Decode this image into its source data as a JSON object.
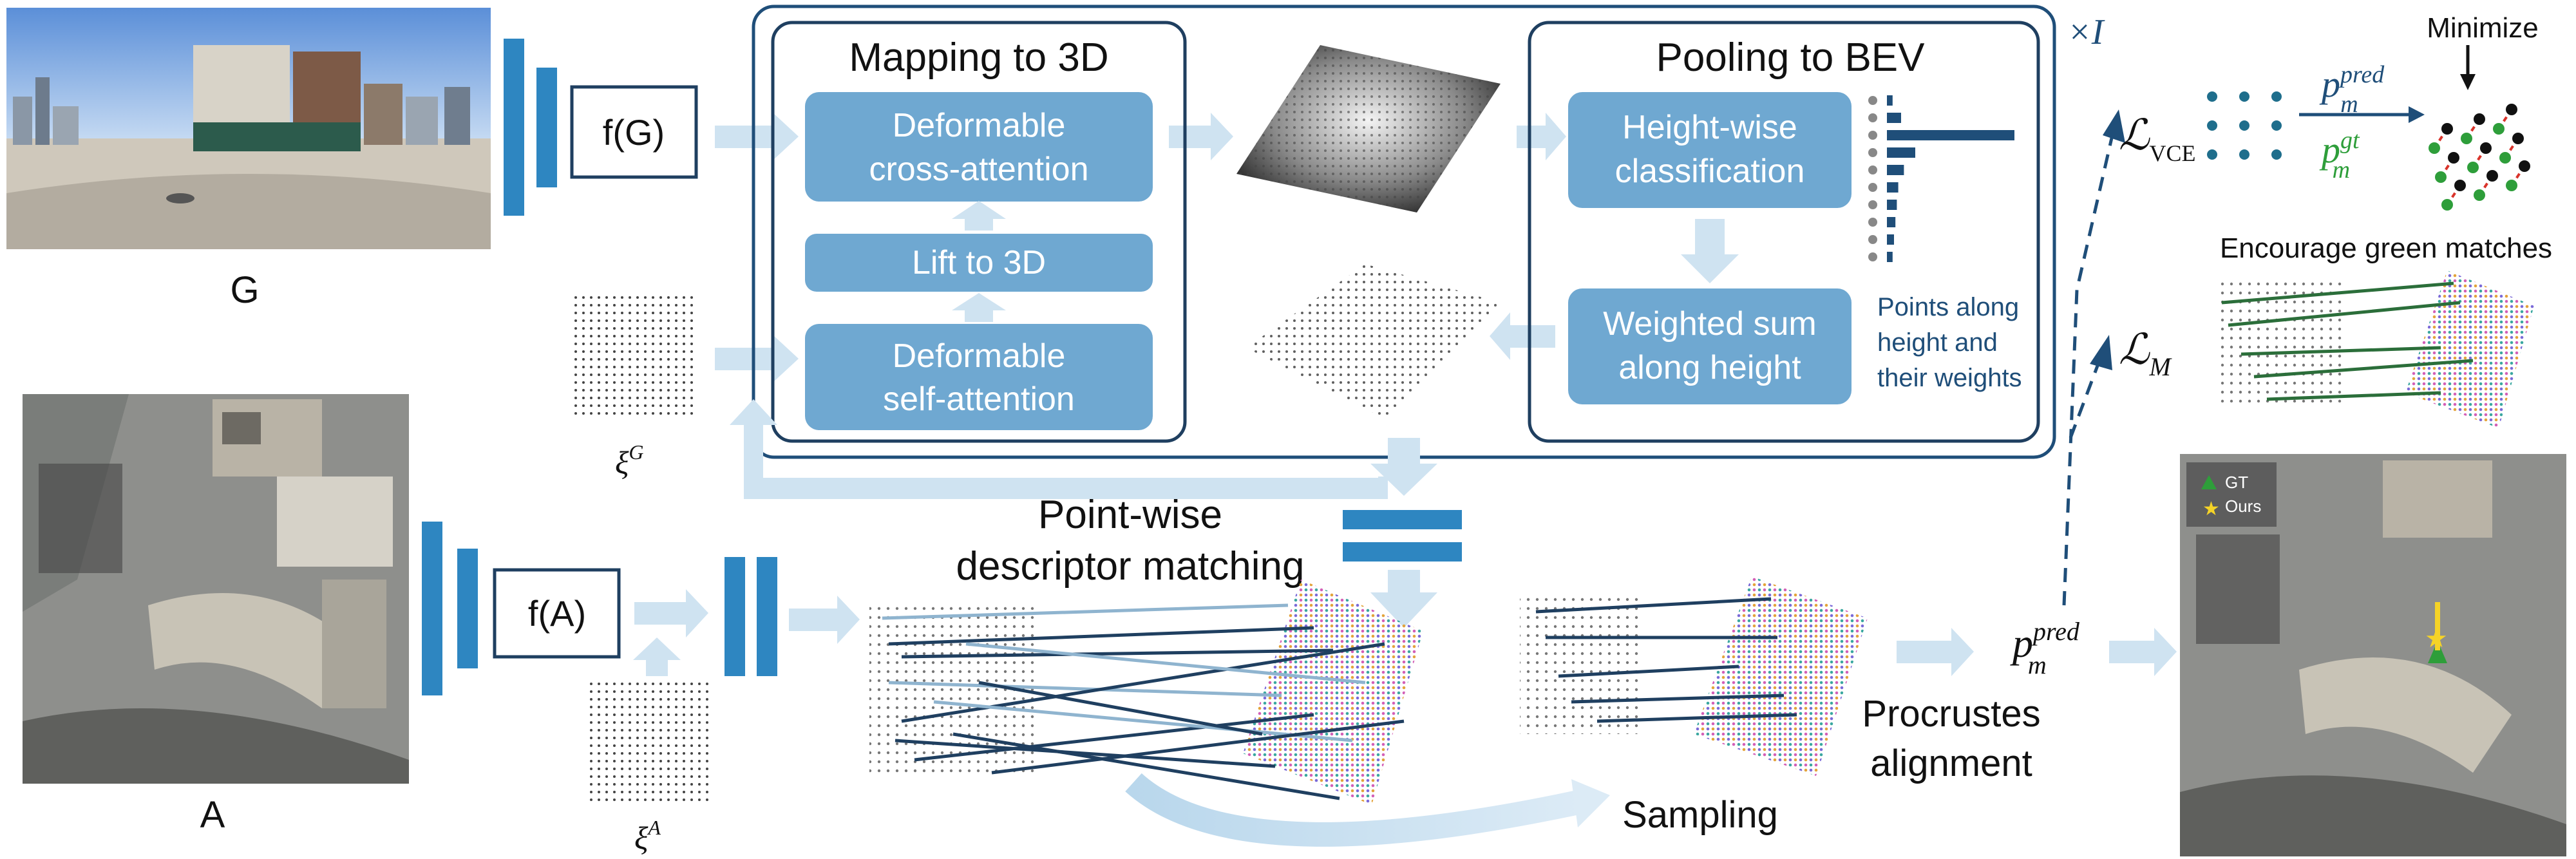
{
  "colors": {
    "navy": "#1f4e79",
    "block_fill": "#6fa8d1",
    "bar_blue": "#2e86c1",
    "light_arrow": "#cfe3f1",
    "green": "#2e9e3a",
    "red": "#d9342b",
    "dark_line": "#1f3f60"
  },
  "inputs": {
    "ground_label": "G",
    "aerial_label": "A"
  },
  "encoders": {
    "ground": "f(G)",
    "aerial": "f(A)"
  },
  "queries": {
    "ground_xi": "ξ",
    "ground_xi_sup": "G",
    "aerial_xi": "ξ",
    "aerial_xi_sup": "A"
  },
  "mapping": {
    "title": "Mapping to 3D",
    "cross_attention": [
      "Deformable",
      "cross-attention"
    ],
    "lift": "Lift to 3D",
    "self_attention": [
      "Deformable",
      "self-attention"
    ]
  },
  "pooling": {
    "title": "Pooling to BEV",
    "classification": [
      "Height-wise",
      "classification"
    ],
    "weighted_sum": [
      "Weighted sum",
      "along height"
    ],
    "points_note": [
      "Points along",
      "height and",
      "their weights"
    ],
    "height_weights": [
      0.04,
      0.1,
      0.9,
      0.2,
      0.12,
      0.08,
      0.07,
      0.06,
      0.05,
      0.04
    ]
  },
  "repeat": "×I",
  "matching": {
    "title": [
      "Point-wise",
      "descriptor matching"
    ],
    "sampling": "Sampling",
    "procrustes": [
      "Procrustes",
      "alignment"
    ]
  },
  "pred": {
    "p": "p",
    "sub": "m",
    "sup": "pred"
  },
  "losses": {
    "vce_L": "ℒ",
    "vce_sub": "VCE",
    "m_L": "ℒ",
    "m_sub": "M",
    "minimize": "Minimize",
    "encourage": "Encourage green matches",
    "p_pred": "p",
    "p_pred_sup": "pred",
    "p_pred_sub": "m",
    "p_gt": "p",
    "p_gt_sup": "gt",
    "p_gt_sub": "m"
  },
  "legend": {
    "gt": "GT",
    "ours": "Ours"
  }
}
